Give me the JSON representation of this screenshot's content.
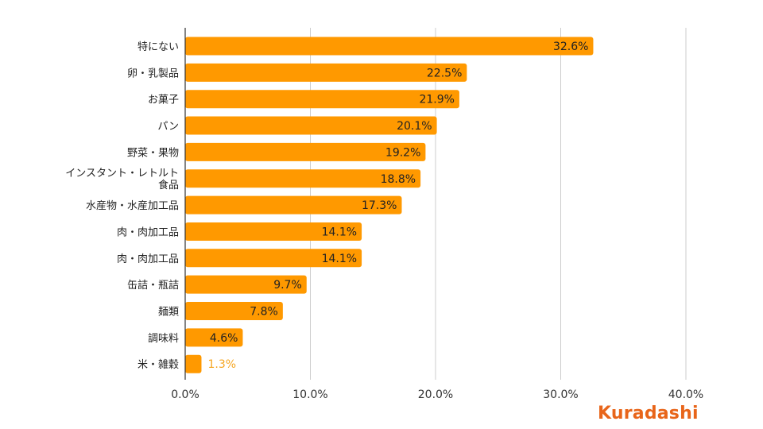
{
  "chart_data": {
    "type": "bar",
    "orientation": "horizontal",
    "categories": [
      "特にない",
      "卵・乳製品",
      "お菓子",
      "パン",
      "野菜・果物",
      "インスタント・レトルト食品",
      "水産物・水産加工品",
      "肉・肉加工品",
      "肉・肉加工品",
      "缶詰・瓶詰",
      "麺類",
      "調味料",
      "米・雑穀"
    ],
    "values": [
      32.6,
      22.5,
      21.9,
      20.1,
      19.2,
      18.8,
      17.3,
      14.1,
      14.1,
      9.7,
      7.8,
      4.6,
      1.3
    ],
    "data_labels": [
      "32.6%",
      "22.5%",
      "21.9%",
      "20.1%",
      "19.2%",
      "18.8%",
      "17.3%",
      "14.1%",
      "14.1%",
      "9.7%",
      "7.8%",
      "4.6%",
      "1.3%"
    ],
    "xlim": [
      0,
      40
    ],
    "xticks": [
      0,
      10,
      20,
      30,
      40
    ],
    "xtick_labels": [
      "0.0%",
      "10.0%",
      "20.0%",
      "30.0%",
      "40.0%"
    ],
    "grid": true,
    "bar_color": "#FF9900",
    "label_color_inside": "#222222",
    "label_color_outside": "#F5A623"
  },
  "brand": {
    "logo_text": "Kuradashi",
    "color": "#E8651A"
  }
}
